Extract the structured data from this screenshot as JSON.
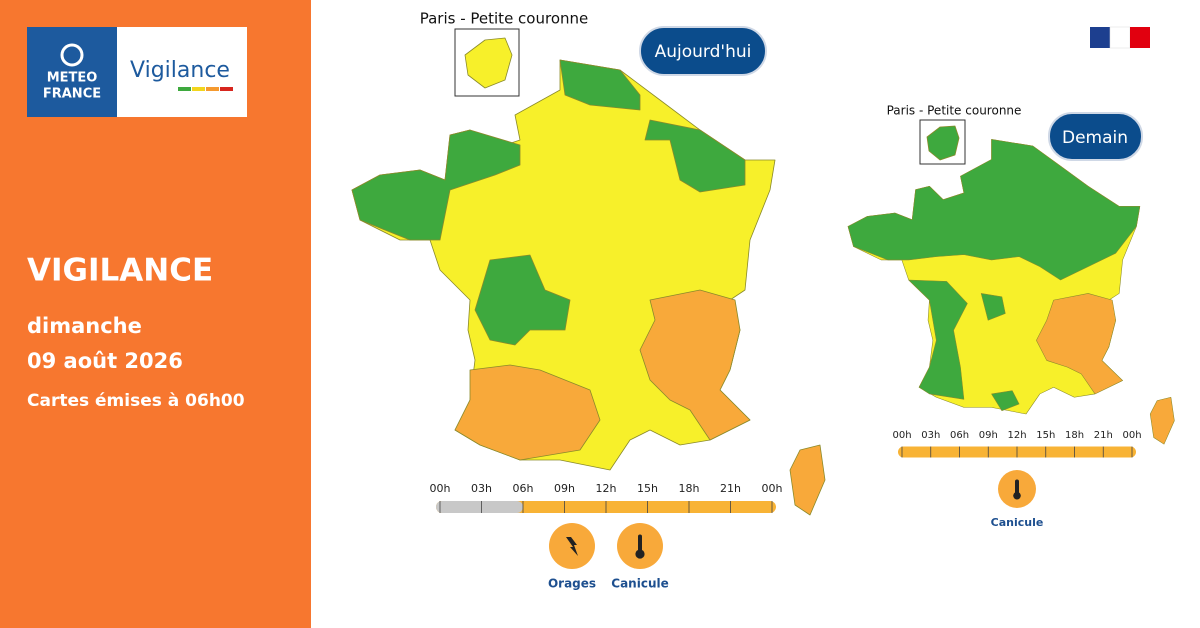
{
  "logo": {
    "brand_lines": [
      "METEO",
      "FRANCE"
    ],
    "product": "Vigilance"
  },
  "sidebar": {
    "heading": "VIGILANCE",
    "day": "dimanche",
    "date": "09 août 2026",
    "issued": "Cartes émises à 06h00"
  },
  "maps": [
    {
      "label": "Aujourd'hui",
      "inset": "Paris - Petite couronne",
      "timeline": [
        "00h",
        "03h",
        "06h",
        "09h",
        "12h",
        "15h",
        "18h",
        "21h",
        "00h"
      ],
      "hazards": [
        "Orages",
        "Canicule"
      ]
    },
    {
      "label": "Demain",
      "inset": "Paris - Petite couronne",
      "timeline": [
        "00h",
        "03h",
        "06h",
        "09h",
        "12h",
        "15h",
        "18h",
        "21h",
        "00h"
      ],
      "hazards": [
        "Canicule"
      ]
    }
  ]
}
